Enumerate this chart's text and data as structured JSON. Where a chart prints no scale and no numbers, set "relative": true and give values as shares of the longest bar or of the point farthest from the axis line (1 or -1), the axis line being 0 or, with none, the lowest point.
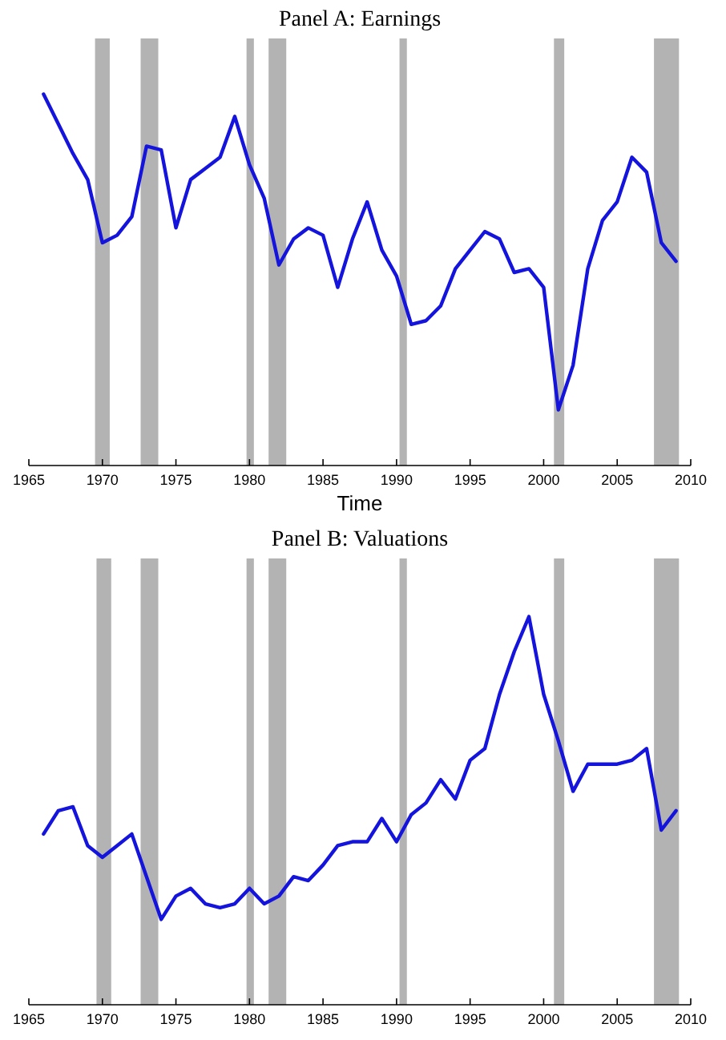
{
  "chart_data": [
    {
      "type": "line",
      "title": "Panel A: Earnings",
      "xlabel": "Time",
      "relative": true,
      "x": [
        1966,
        1967,
        1968,
        1969,
        1970,
        1971,
        1972,
        1973,
        1974,
        1975,
        1976,
        1977,
        1978,
        1979,
        1980,
        1981,
        1982,
        1983,
        1984,
        1985,
        1986,
        1987,
        1988,
        1989,
        1990,
        1991,
        1992,
        1993,
        1994,
        1995,
        1996,
        1997,
        1998,
        1999,
        2000,
        2001,
        2002,
        2003,
        2004,
        2005,
        2006,
        2007,
        2008,
        2009
      ],
      "series": [
        {
          "color": "#1414dc",
          "values": [
            1.0,
            0.92,
            0.84,
            0.77,
            0.6,
            0.62,
            0.67,
            0.86,
            0.85,
            0.64,
            0.77,
            0.8,
            0.83,
            0.94,
            0.81,
            0.72,
            0.54,
            0.61,
            0.64,
            0.62,
            0.48,
            0.61,
            0.71,
            0.58,
            0.51,
            0.38,
            0.39,
            0.43,
            0.53,
            0.58,
            0.63,
            0.61,
            0.52,
            0.53,
            0.48,
            0.15,
            0.27,
            0.53,
            0.66,
            0.71,
            0.83,
            0.79,
            0.6,
            0.55
          ]
        }
      ],
      "xlim": [
        1965,
        2010
      ],
      "xticks": [
        1965,
        1970,
        1975,
        1980,
        1985,
        1990,
        1995,
        2000,
        2005,
        2010
      ],
      "bands": [
        {
          "axis": "x",
          "from": 1969.5,
          "to": 1970.5,
          "color": "#b3b3b3"
        },
        {
          "axis": "x",
          "from": 1972.6,
          "to": 1973.8,
          "color": "#b3b3b3"
        },
        {
          "axis": "x",
          "from": 1979.8,
          "to": 1980.3,
          "color": "#b3b3b3"
        },
        {
          "axis": "x",
          "from": 1981.3,
          "to": 1982.5,
          "color": "#b3b3b3"
        },
        {
          "axis": "x",
          "from": 1990.2,
          "to": 1990.7,
          "color": "#b3b3b3"
        },
        {
          "axis": "x",
          "from": 2000.7,
          "to": 2001.4,
          "color": "#b3b3b3"
        },
        {
          "axis": "x",
          "from": 2007.5,
          "to": 2009.2,
          "color": "#b3b3b3"
        }
      ]
    },
    {
      "type": "line",
      "title": "Panel B: Valuations",
      "relative": true,
      "x": [
        1966,
        1967,
        1968,
        1969,
        1970,
        1971,
        1972,
        1973,
        1974,
        1975,
        1976,
        1977,
        1978,
        1979,
        1980,
        1981,
        1982,
        1983,
        1984,
        1985,
        1986,
        1987,
        1988,
        1989,
        1990,
        1991,
        1992,
        1993,
        1994,
        1995,
        1996,
        1997,
        1998,
        1999,
        2000,
        2001,
        2002,
        2003,
        2004,
        2005,
        2006,
        2007,
        2008,
        2009
      ],
      "series": [
        {
          "color": "#1414dc",
          "values": [
            0.44,
            0.5,
            0.51,
            0.41,
            0.38,
            0.41,
            0.44,
            0.33,
            0.22,
            0.28,
            0.3,
            0.26,
            0.25,
            0.26,
            0.3,
            0.26,
            0.28,
            0.33,
            0.32,
            0.36,
            0.41,
            0.42,
            0.42,
            0.48,
            0.42,
            0.49,
            0.52,
            0.58,
            0.53,
            0.63,
            0.66,
            0.8,
            0.91,
            1.0,
            0.8,
            0.68,
            0.55,
            0.62,
            0.62,
            0.62,
            0.63,
            0.66,
            0.45,
            0.5
          ]
        }
      ],
      "xlim": [
        1965,
        2010
      ],
      "xticks": [
        1965,
        1970,
        1975,
        1980,
        1985,
        1990,
        1995,
        2000,
        2005,
        2010
      ],
      "bands": [
        {
          "axis": "x",
          "from": 1969.6,
          "to": 1970.6,
          "color": "#b3b3b3"
        },
        {
          "axis": "x",
          "from": 1972.6,
          "to": 1973.8,
          "color": "#b3b3b3"
        },
        {
          "axis": "x",
          "from": 1979.8,
          "to": 1980.3,
          "color": "#b3b3b3"
        },
        {
          "axis": "x",
          "from": 1981.3,
          "to": 1982.5,
          "color": "#b3b3b3"
        },
        {
          "axis": "x",
          "from": 1990.2,
          "to": 1990.7,
          "color": "#b3b3b3"
        },
        {
          "axis": "x",
          "from": 2000.7,
          "to": 2001.4,
          "color": "#b3b3b3"
        },
        {
          "axis": "x",
          "from": 2007.5,
          "to": 2009.2,
          "color": "#b3b3b3"
        }
      ]
    }
  ]
}
